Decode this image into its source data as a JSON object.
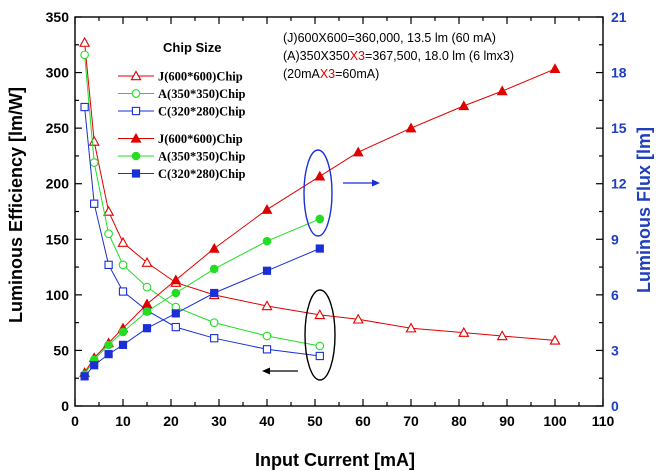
{
  "chart_data": {
    "type": "line",
    "xlabel": "Input Current [mA]",
    "ylabel": "Luminous Efficiency [lm/W]",
    "y2label": "Luminous Flux [lm]",
    "xlim": [
      0,
      110
    ],
    "ylim": [
      0,
      350
    ],
    "y2lim": [
      0,
      21
    ],
    "x_ticks": [
      0,
      10,
      20,
      30,
      40,
      50,
      60,
      70,
      80,
      90,
      100,
      110
    ],
    "y_ticks": [
      0,
      50,
      100,
      150,
      200,
      250,
      300,
      350
    ],
    "y2_ticks": [
      0,
      3,
      6,
      9,
      12,
      15,
      18,
      21
    ],
    "grid": false,
    "legend_title": "Chip Size",
    "legend_position": "top-left",
    "colors": {
      "red": "#e00000",
      "green": "#22dd22",
      "blue": "#1a2fd6",
      "right_axis": "#1f3fbf"
    },
    "series": [
      {
        "name": "J(600*600)Chip",
        "axis": "left",
        "marker": "open-triangle",
        "color": "#e00000",
        "x": [
          2,
          4,
          7,
          10,
          15,
          21,
          29,
          40,
          51,
          59,
          70,
          81,
          89,
          100
        ],
        "y": [
          327,
          238,
          175,
          147,
          129,
          111,
          100,
          90,
          82,
          78,
          70,
          66,
          63,
          59
        ]
      },
      {
        "name": "A(350*350)Chip",
        "axis": "left",
        "marker": "open-circle",
        "color": "#22dd22",
        "x": [
          2,
          4,
          7,
          10,
          15,
          21,
          29,
          40,
          51
        ],
        "y": [
          316,
          219,
          155,
          127,
          107,
          89,
          75,
          63,
          54
        ]
      },
      {
        "name": "C(320*280)Chip",
        "axis": "left",
        "marker": "open-square",
        "color": "#1a2fd6",
        "x": [
          2,
          4,
          7,
          10,
          15,
          21,
          29,
          40,
          51
        ],
        "y": [
          269,
          182,
          127,
          103,
          86,
          71,
          61,
          51,
          45
        ]
      },
      {
        "name": "J(600*600)Chip",
        "axis": "right",
        "marker": "filled-triangle",
        "color": "#e00000",
        "x": [
          2,
          4,
          7,
          10,
          15,
          21,
          29,
          40,
          51,
          59,
          70,
          81,
          89,
          100
        ],
        "y": [
          1.8,
          2.6,
          3.4,
          4.2,
          5.5,
          6.8,
          8.5,
          10.6,
          12.4,
          13.7,
          15.0,
          16.2,
          17.0,
          18.2
        ]
      },
      {
        "name": "A(350*350)Chip",
        "axis": "right",
        "marker": "filled-circle",
        "color": "#22dd22",
        "x": [
          2,
          4,
          7,
          10,
          15,
          21,
          29,
          40,
          51
        ],
        "y": [
          1.7,
          2.5,
          3.3,
          4.0,
          5.1,
          6.1,
          7.4,
          8.9,
          10.1
        ]
      },
      {
        "name": "C(320*280)Chip",
        "axis": "right",
        "marker": "filled-square",
        "color": "#1a2fd6",
        "x": [
          2,
          4,
          7,
          10,
          15,
          21,
          29,
          40,
          51
        ],
        "y": [
          1.6,
          2.2,
          2.8,
          3.3,
          4.2,
          5.0,
          6.1,
          7.3,
          8.5
        ]
      }
    ],
    "annotations": {
      "line1": "(J)600X600=360,000,     13.5 lm (60 mA)",
      "line2_a": "(A)350X350",
      "line2_b": "X3",
      "line2_c": "=367,500,  18.0 lm (6 lmx3)",
      "line3_a": "(20mA",
      "line3_b": "X3",
      "line3_c": "=60mA)"
    }
  }
}
